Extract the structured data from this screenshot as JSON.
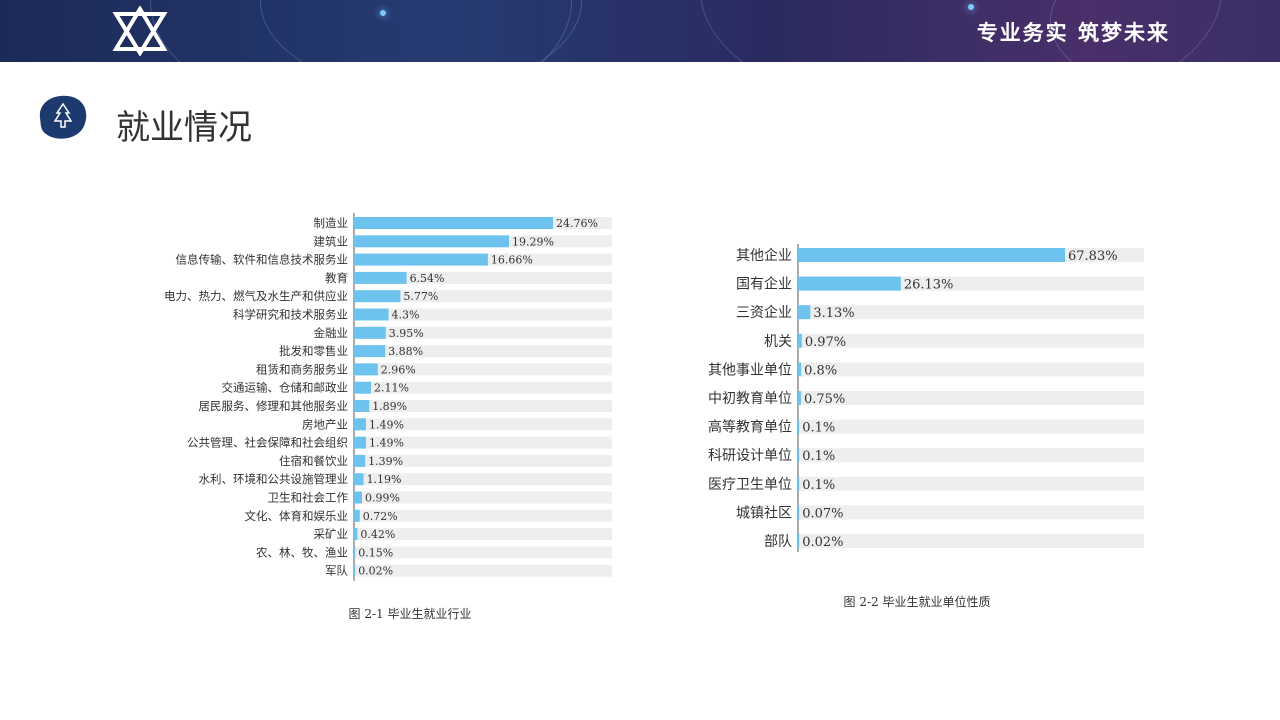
{
  "header": {
    "slogan": "专业务实 筑梦未来",
    "logo_icon": "star-logo-icon"
  },
  "section": {
    "title": "就业情况",
    "badge_icon": "tree-icon"
  },
  "colors": {
    "bar": "#6ec3ee",
    "track": "#eeeeee",
    "banner": "#1e2d5c"
  },
  "chart_data": [
    {
      "type": "bar",
      "orientation": "horizontal",
      "caption": "图 2-1  毕业生就业行业",
      "categories": [
        "制造业",
        "建筑业",
        "信息传输、软件和信息技术服务业",
        "教育",
        "电力、热力、燃气及水生产和供应业",
        "科学研究和技术服务业",
        "金融业",
        "批发和零售业",
        "租赁和商务服务业",
        "交通运输、仓储和邮政业",
        "居民服务、修理和其他服务业",
        "房地产业",
        "公共管理、社会保障和社会组织",
        "住宿和餐饮业",
        "水利、环境和公共设施管理业",
        "卫生和社会工作",
        "文化、体育和娱乐业",
        "采矿业",
        "农、林、牧、渔业",
        "军队"
      ],
      "values": [
        24.76,
        19.29,
        16.66,
        6.54,
        5.77,
        4.3,
        3.95,
        3.88,
        2.96,
        2.11,
        1.89,
        1.49,
        1.49,
        1.39,
        1.19,
        0.99,
        0.72,
        0.42,
        0.15,
        0.02
      ],
      "labels": [
        "24.76%",
        "19.29%",
        "16.66%",
        "6.54%",
        "5.77%",
        "4.3%",
        "3.95%",
        "3.88%",
        "2.96%",
        "2.11%",
        "1.89%",
        "1.49%",
        "1.49%",
        "1.39%",
        "1.19%",
        "0.99%",
        "0.72%",
        "0.42%",
        "0.15%",
        "0.02%"
      ],
      "unit": "%"
    },
    {
      "type": "bar",
      "orientation": "horizontal",
      "caption": "图 2-2  毕业生就业单位性质",
      "categories": [
        "其他企业",
        "国有企业",
        "三资企业",
        "机关",
        "其他事业单位",
        "中初教育单位",
        "高等教育单位",
        "科研设计单位",
        "医疗卫生单位",
        "城镇社区",
        "部队"
      ],
      "values": [
        67.83,
        26.13,
        3.13,
        0.97,
        0.8,
        0.75,
        0.1,
        0.1,
        0.1,
        0.07,
        0.02
      ],
      "labels": [
        "67.83%",
        "26.13%",
        "3.13%",
        "0.97%",
        "0.8%",
        "0.75%",
        "0.1%",
        "0.1%",
        "0.1%",
        "0.07%",
        "0.02%"
      ],
      "unit": "%"
    }
  ]
}
